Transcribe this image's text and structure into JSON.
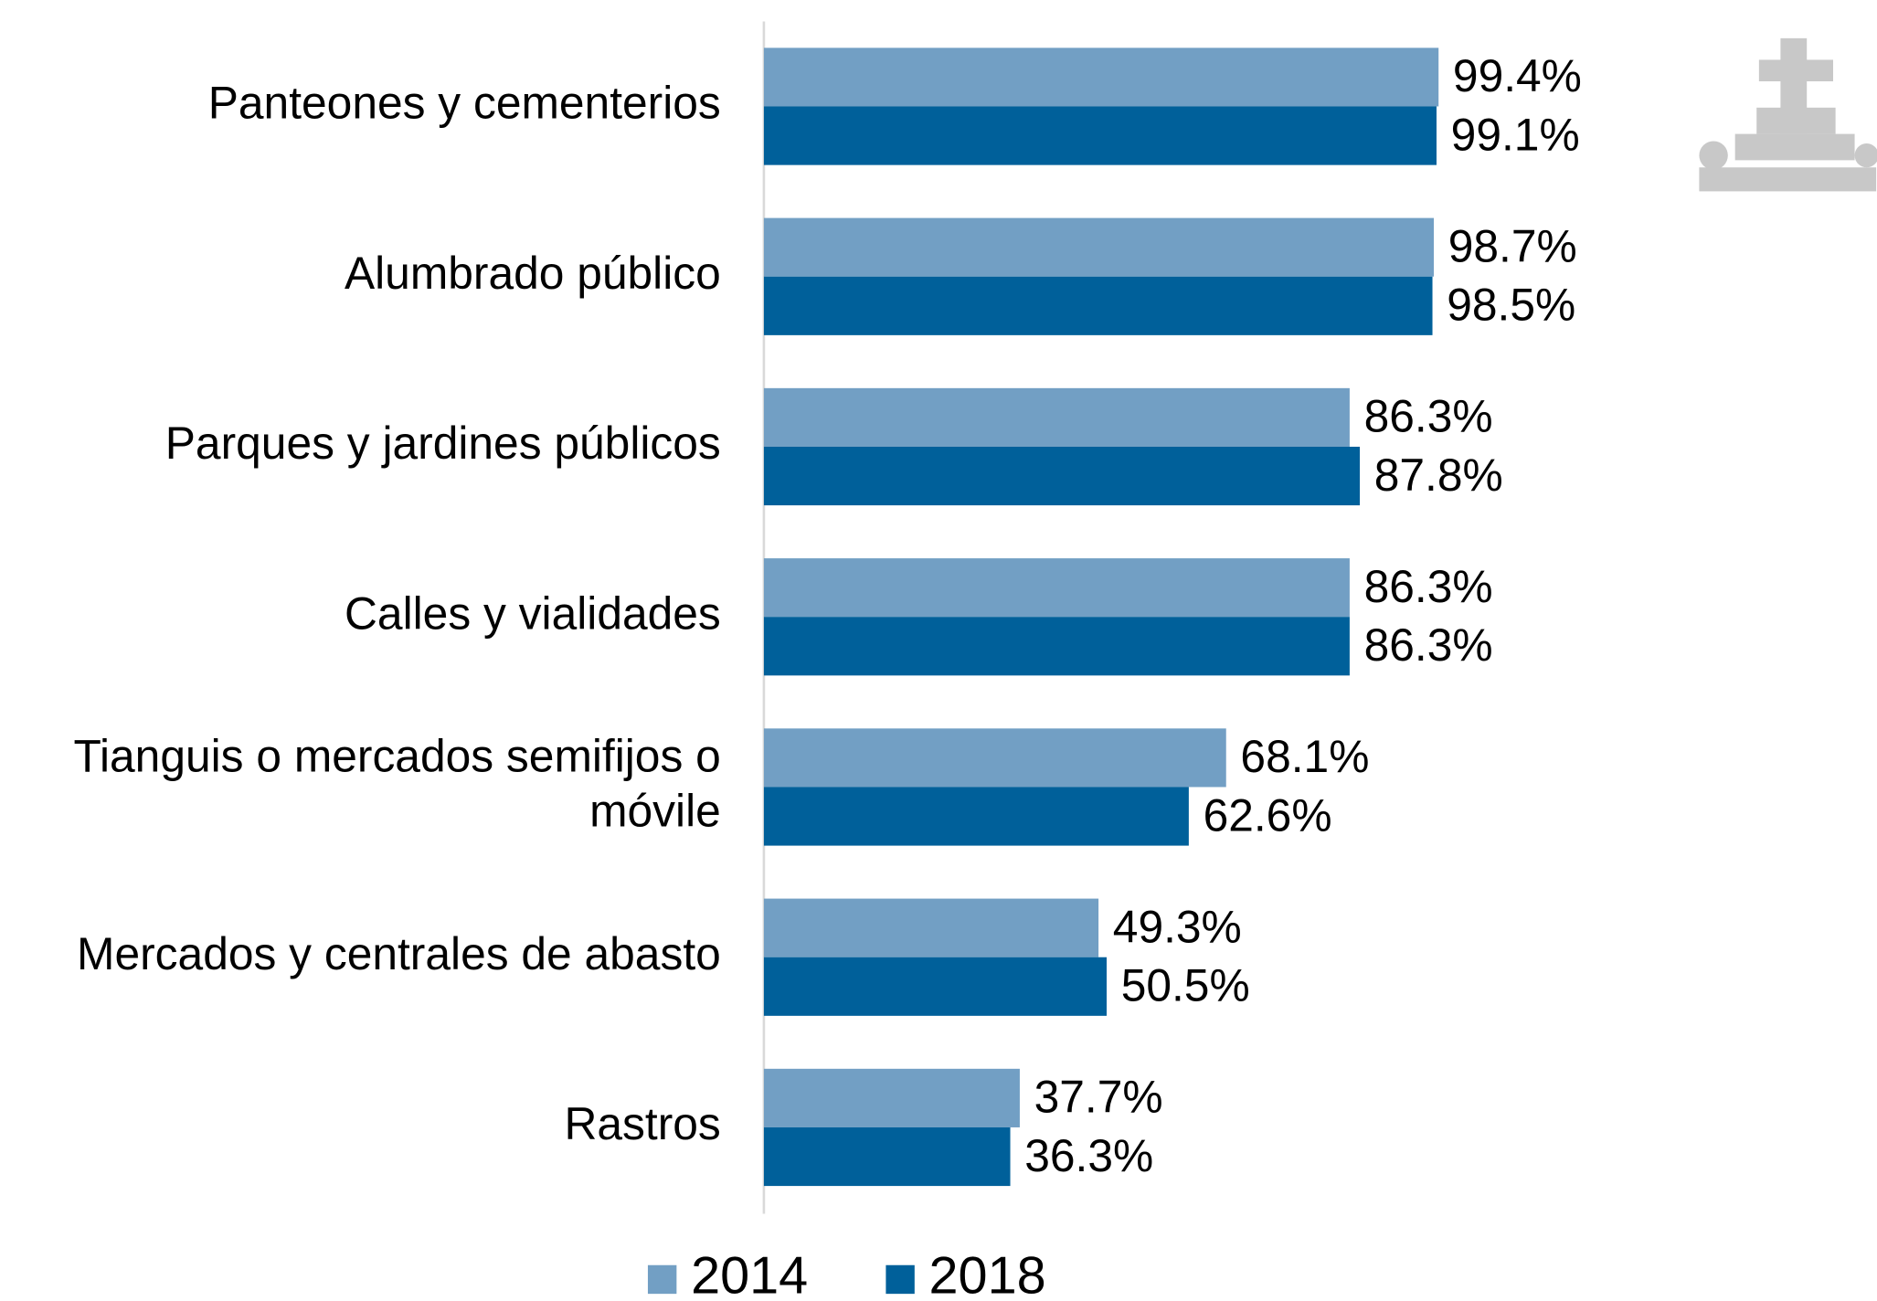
{
  "chart_data": {
    "type": "barh",
    "categories": [
      "Panteones y cementerios",
      "Alumbrado público",
      "Parques y jardines públicos",
      "Calles y vialidades",
      "Tianguis o mercados semifijos o móvile",
      "Mercados y centrales de abasto",
      "Rastros"
    ],
    "series": [
      {
        "name": "2014",
        "color": "#729fc4",
        "values": [
          99.4,
          98.7,
          86.3,
          86.3,
          68.1,
          49.3,
          37.7
        ],
        "value_labels": [
          "99.4%",
          "98.7%",
          "86.3%",
          "86.3%",
          "68.1%",
          "49.3%",
          "37.7%"
        ]
      },
      {
        "name": "2018",
        "color": "#00609a",
        "values": [
          99.1,
          98.5,
          87.8,
          86.3,
          62.6,
          50.5,
          36.3
        ],
        "value_labels": [
          "99.1%",
          "98.5%",
          "87.8%",
          "86.3%",
          "62.6%",
          "50.5%",
          "36.3%"
        ]
      }
    ],
    "xlim": [
      0,
      100
    ],
    "legend": "bottom"
  }
}
